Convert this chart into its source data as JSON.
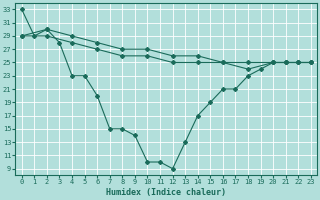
{
  "xlabel": "Humidex (Indice chaleur)",
  "bg_color": "#b2dfdb",
  "line_color": "#1a6b5a",
  "grid_color": "#ffffff",
  "xlim": [
    -0.5,
    23.5
  ],
  "ylim": [
    8,
    34
  ],
  "yticks": [
    9,
    11,
    13,
    15,
    17,
    19,
    21,
    23,
    25,
    27,
    29,
    31,
    33
  ],
  "xticks": [
    0,
    1,
    2,
    3,
    4,
    5,
    6,
    7,
    8,
    9,
    10,
    11,
    12,
    13,
    14,
    15,
    16,
    17,
    18,
    19,
    20,
    21,
    22,
    23
  ],
  "line1_x": [
    0,
    1,
    2,
    3,
    4,
    5,
    6,
    7,
    8,
    9,
    10,
    11,
    12,
    13,
    14,
    15,
    16,
    17,
    18,
    19,
    20,
    21,
    22,
    23
  ],
  "line1_y": [
    33,
    29,
    30,
    28,
    23,
    23,
    20,
    15,
    15,
    14,
    10,
    10,
    9,
    13,
    17,
    19,
    21,
    21,
    23,
    24,
    25,
    25,
    25,
    25
  ],
  "line2_x": [
    0,
    2,
    4,
    6,
    8,
    10,
    12,
    14,
    16,
    18,
    20,
    21,
    22,
    23
  ],
  "line2_y": [
    29,
    30,
    29,
    28,
    27,
    27,
    26,
    26,
    25,
    25,
    25,
    25,
    25,
    25
  ],
  "line3_x": [
    0,
    2,
    4,
    6,
    8,
    10,
    12,
    14,
    16,
    18,
    20,
    21,
    22,
    23
  ],
  "line3_y": [
    29,
    29,
    28,
    27,
    26,
    26,
    25,
    25,
    25,
    24,
    25,
    25,
    25,
    25
  ],
  "marker": "D",
  "markersize": 2.0,
  "linewidth": 0.8
}
